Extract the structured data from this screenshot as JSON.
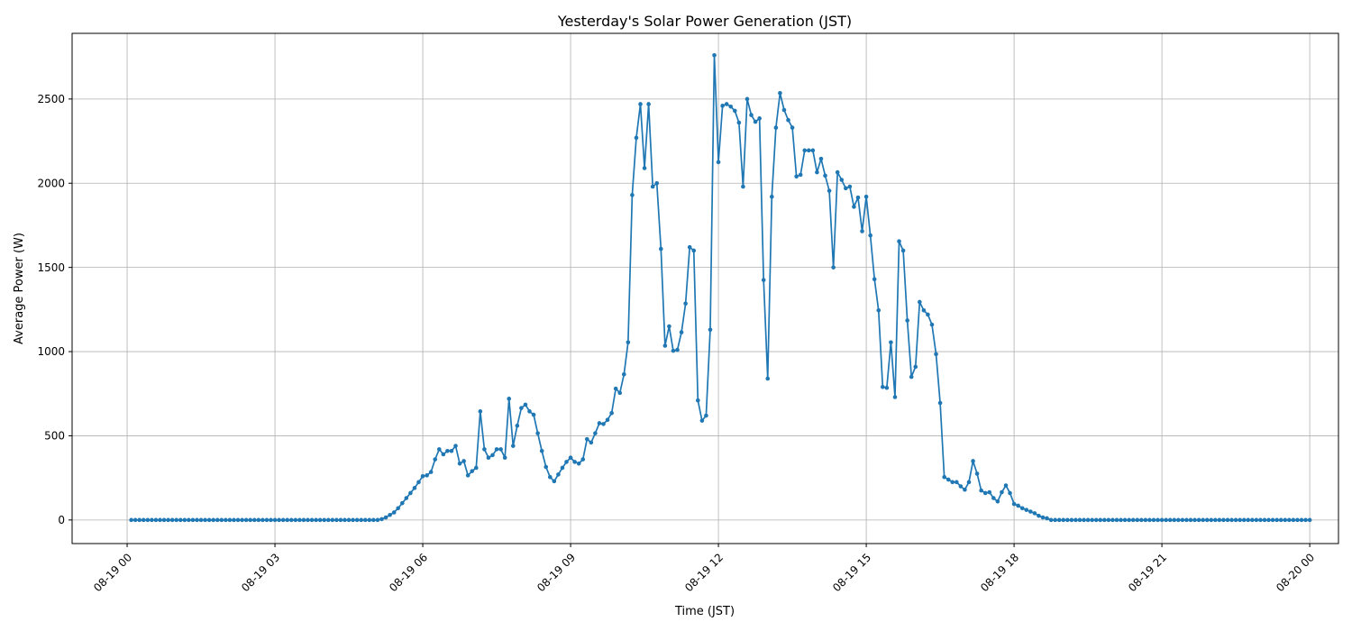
{
  "chart_data": {
    "type": "line",
    "title": "Yesterday's Solar Power Generation (JST)",
    "xlabel": "Time (JST)",
    "ylabel": "Average Power (W)",
    "x_start": "08-19 00:05",
    "x_step_minutes": 5,
    "xlim": [
      "08-18 22:53",
      "08-20 00:35"
    ],
    "ylim": [
      -140,
      2890
    ],
    "x_ticks": [
      {
        "label": "08-19 00",
        "hour": 0
      },
      {
        "label": "08-19 03",
        "hour": 3
      },
      {
        "label": "08-19 06",
        "hour": 6
      },
      {
        "label": "08-19 09",
        "hour": 9
      },
      {
        "label": "08-19 12",
        "hour": 12
      },
      {
        "label": "08-19 15",
        "hour": 15
      },
      {
        "label": "08-19 18",
        "hour": 18
      },
      {
        "label": "08-19 21",
        "hour": 21
      },
      {
        "label": "08-20 00",
        "hour": 24
      }
    ],
    "y_ticks": [
      0,
      500,
      1000,
      1500,
      2000,
      2500
    ],
    "grid": true,
    "color": "#1f77b4",
    "series": [
      {
        "values": [
          0,
          0,
          0,
          0,
          0,
          0,
          0,
          0,
          0,
          0,
          0,
          0,
          0,
          0,
          0,
          0,
          0,
          0,
          0,
          0,
          0,
          0,
          0,
          0,
          0,
          0,
          0,
          0,
          0,
          0,
          0,
          0,
          0,
          0,
          0,
          0,
          0,
          0,
          0,
          0,
          0,
          0,
          0,
          0,
          0,
          0,
          0,
          0,
          0,
          0,
          0,
          0,
          0,
          0,
          0,
          0,
          0,
          0,
          0,
          0,
          0,
          5,
          15,
          30,
          45,
          70,
          100,
          130,
          160,
          190,
          225,
          260,
          265,
          285,
          360,
          420,
          390,
          410,
          410,
          440,
          335,
          350,
          265,
          290,
          310,
          645,
          420,
          370,
          385,
          420,
          420,
          370,
          720,
          440,
          560,
          665,
          685,
          645,
          625,
          515,
          410,
          315,
          255,
          230,
          270,
          310,
          345,
          370,
          345,
          335,
          360,
          480,
          460,
          515,
          575,
          570,
          595,
          635,
          780,
          755,
          865,
          1055,
          1930,
          2270,
          2470,
          2090,
          2470,
          1980,
          2000,
          1610,
          1035,
          1150,
          1005,
          1010,
          1115,
          1285,
          1620,
          1600,
          710,
          590,
          620,
          1130,
          2760,
          2125,
          2460,
          2470,
          2455,
          2430,
          2360,
          1980,
          2500,
          2405,
          2365,
          2385,
          1425,
          840,
          1920,
          2330,
          2535,
          2435,
          2375,
          2330,
          2040,
          2050,
          2195,
          2195,
          2195,
          2065,
          2145,
          2045,
          1955,
          1500,
          2065,
          2020,
          1970,
          1980,
          1860,
          1915,
          1715,
          1920,
          1690,
          1430,
          1245,
          790,
          785,
          1055,
          730,
          1655,
          1600,
          1185,
          850,
          910,
          1295,
          1245,
          1220,
          1160,
          985,
          695,
          255,
          240,
          225,
          225,
          200,
          180,
          225,
          350,
          275,
          175,
          160,
          165,
          130,
          110,
          165,
          205,
          160,
          95,
          85,
          70,
          60,
          50,
          40,
          25,
          15,
          10,
          0,
          0,
          0,
          0,
          0,
          0,
          0,
          0,
          0,
          0,
          0,
          0,
          0,
          0,
          0,
          0,
          0,
          0,
          0,
          0,
          0,
          0,
          0,
          0,
          0,
          0,
          0,
          0,
          0,
          0,
          0,
          0,
          0,
          0,
          0,
          0,
          0,
          0,
          0,
          0,
          0,
          0,
          0,
          0,
          0,
          0,
          0,
          0,
          0,
          0,
          0,
          0,
          0,
          0,
          0,
          0,
          0,
          0,
          0,
          0,
          0,
          0,
          0,
          0
        ]
      }
    ]
  }
}
